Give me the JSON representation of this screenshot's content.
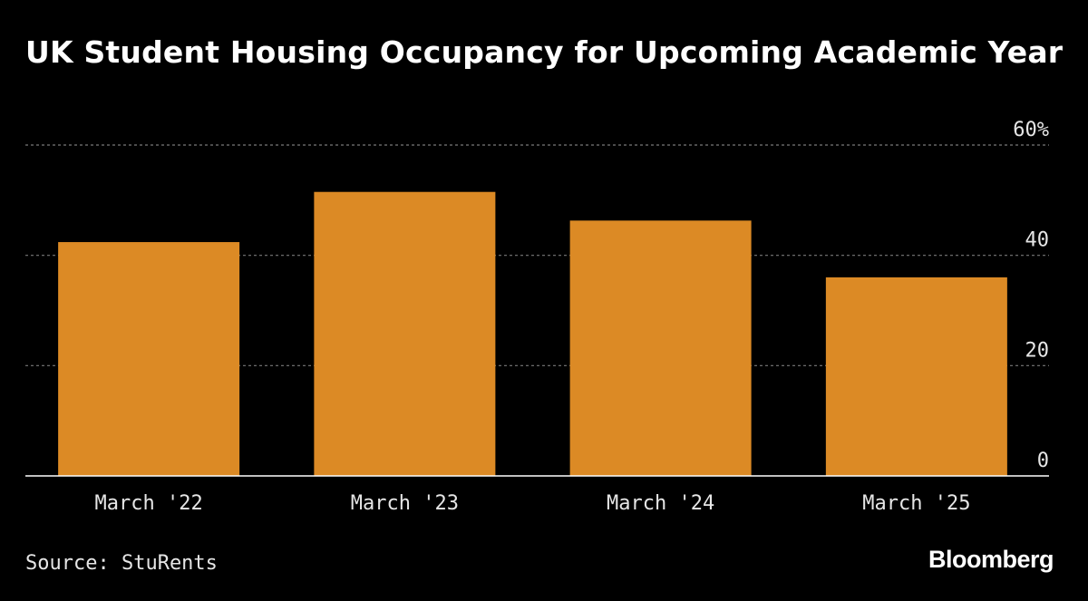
{
  "chart_data": {
    "type": "bar",
    "title": "UK Student Housing Occupancy for Upcoming Academic Year",
    "categories": [
      "March '22",
      "March '23",
      "March '24",
      "March '25"
    ],
    "values": [
      42.4,
      51.5,
      46.3,
      36.0
    ],
    "ylim": [
      0,
      60
    ],
    "yticks": [
      0,
      20,
      40,
      60
    ],
    "ytick_labels": [
      "0",
      "20",
      "40",
      "60%"
    ],
    "xlabel": "",
    "ylabel": "",
    "grid": true,
    "bar_color": "#dc8a25",
    "source": "Source: StuRents",
    "brand": "Bloomberg"
  }
}
